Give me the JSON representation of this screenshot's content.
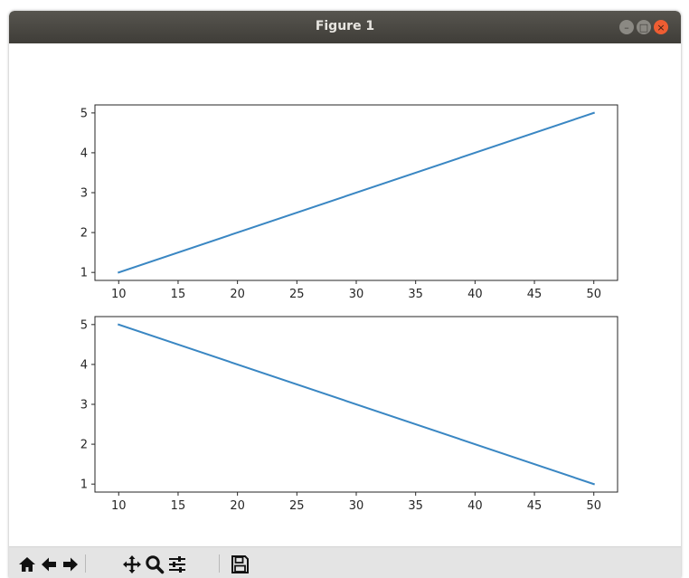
{
  "window": {
    "title": "Figure 1",
    "buttons": [
      "minimize",
      "maximize",
      "close"
    ]
  },
  "toolbar": {
    "tools": [
      {
        "icon": "home-icon"
      },
      {
        "icon": "back-arrow-icon"
      },
      {
        "icon": "forward-arrow-icon"
      },
      {
        "icon": "pan-icon"
      },
      {
        "icon": "zoom-icon"
      },
      {
        "icon": "configure-subplots-icon"
      },
      {
        "icon": "save-icon"
      }
    ]
  },
  "colors": {
    "line": "#3a87c3",
    "axes": "#262626",
    "titlebar": "#3f3d38",
    "close": "#ee5d32"
  },
  "chart_data": [
    {
      "type": "line",
      "title": "",
      "xlabel": "",
      "ylabel": "",
      "x": [
        10,
        50
      ],
      "y": [
        1,
        5
      ],
      "xlim": [
        8,
        52
      ],
      "ylim": [
        0.8,
        5.2
      ],
      "xticks": [
        "10",
        "15",
        "20",
        "25",
        "30",
        "35",
        "40",
        "45",
        "50"
      ],
      "yticks": [
        "1",
        "2",
        "3",
        "4",
        "5"
      ],
      "grid": false
    },
    {
      "type": "line",
      "title": "",
      "xlabel": "",
      "ylabel": "",
      "x": [
        10,
        50
      ],
      "y": [
        5,
        1
      ],
      "xlim": [
        8,
        52
      ],
      "ylim": [
        0.8,
        5.2
      ],
      "xticks": [
        "10",
        "15",
        "20",
        "25",
        "30",
        "35",
        "40",
        "45",
        "50"
      ],
      "yticks": [
        "1",
        "2",
        "3",
        "4",
        "5"
      ],
      "grid": false
    }
  ]
}
